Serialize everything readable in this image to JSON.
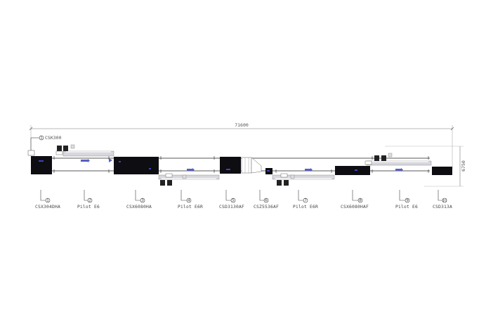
{
  "dimensions": {
    "overall_length": "71600",
    "overall_width": "6750"
  },
  "title_callout": "CSK300",
  "stations": [
    {
      "number": "1",
      "model": "CSX304DHA"
    },
    {
      "number": "2",
      "model": "Pilot E6"
    },
    {
      "number": "3",
      "model": "CSX6080HA"
    },
    {
      "number": "4",
      "model": "Pilot E6R"
    },
    {
      "number": "5",
      "model": "CSD3130AF"
    },
    {
      "number": "6",
      "model": "CSZ5536AF"
    },
    {
      "number": "7",
      "model": "Pilot E6R"
    },
    {
      "number": "8",
      "model": "CSX6080HAF"
    },
    {
      "number": "9",
      "model": "Pilot E6"
    },
    {
      "number": "10",
      "model": "CSD313A"
    }
  ],
  "colors": {
    "machine_body": "#0d0d12",
    "flow_arrow": "#5a5fc0",
    "conveyor": "#c8c8d0",
    "line": "#333333"
  }
}
